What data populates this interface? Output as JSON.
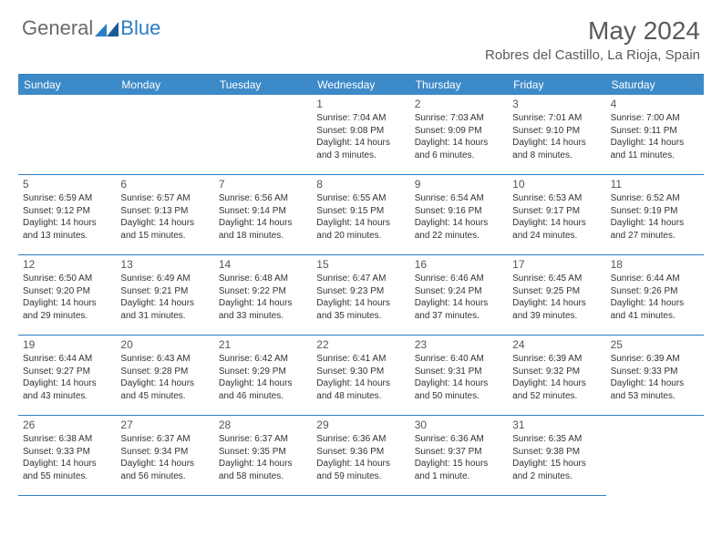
{
  "brand": {
    "general": "General",
    "blue": "Blue"
  },
  "title": "May 2024",
  "location": "Robres del Castillo, La Rioja, Spain",
  "colors": {
    "header_bg": "#3d8ac9",
    "border": "#2b7dc4",
    "text": "#333333",
    "title": "#5a5a5a"
  },
  "weekdays": [
    "Sunday",
    "Monday",
    "Tuesday",
    "Wednesday",
    "Thursday",
    "Friday",
    "Saturday"
  ],
  "first_day_index": 3,
  "days": [
    {
      "n": "1",
      "sunrise": "Sunrise: 7:04 AM",
      "sunset": "Sunset: 9:08 PM",
      "daylight": "Daylight: 14 hours and 3 minutes."
    },
    {
      "n": "2",
      "sunrise": "Sunrise: 7:03 AM",
      "sunset": "Sunset: 9:09 PM",
      "daylight": "Daylight: 14 hours and 6 minutes."
    },
    {
      "n": "3",
      "sunrise": "Sunrise: 7:01 AM",
      "sunset": "Sunset: 9:10 PM",
      "daylight": "Daylight: 14 hours and 8 minutes."
    },
    {
      "n": "4",
      "sunrise": "Sunrise: 7:00 AM",
      "sunset": "Sunset: 9:11 PM",
      "daylight": "Daylight: 14 hours and 11 minutes."
    },
    {
      "n": "5",
      "sunrise": "Sunrise: 6:59 AM",
      "sunset": "Sunset: 9:12 PM",
      "daylight": "Daylight: 14 hours and 13 minutes."
    },
    {
      "n": "6",
      "sunrise": "Sunrise: 6:57 AM",
      "sunset": "Sunset: 9:13 PM",
      "daylight": "Daylight: 14 hours and 15 minutes."
    },
    {
      "n": "7",
      "sunrise": "Sunrise: 6:56 AM",
      "sunset": "Sunset: 9:14 PM",
      "daylight": "Daylight: 14 hours and 18 minutes."
    },
    {
      "n": "8",
      "sunrise": "Sunrise: 6:55 AM",
      "sunset": "Sunset: 9:15 PM",
      "daylight": "Daylight: 14 hours and 20 minutes."
    },
    {
      "n": "9",
      "sunrise": "Sunrise: 6:54 AM",
      "sunset": "Sunset: 9:16 PM",
      "daylight": "Daylight: 14 hours and 22 minutes."
    },
    {
      "n": "10",
      "sunrise": "Sunrise: 6:53 AM",
      "sunset": "Sunset: 9:17 PM",
      "daylight": "Daylight: 14 hours and 24 minutes."
    },
    {
      "n": "11",
      "sunrise": "Sunrise: 6:52 AM",
      "sunset": "Sunset: 9:19 PM",
      "daylight": "Daylight: 14 hours and 27 minutes."
    },
    {
      "n": "12",
      "sunrise": "Sunrise: 6:50 AM",
      "sunset": "Sunset: 9:20 PM",
      "daylight": "Daylight: 14 hours and 29 minutes."
    },
    {
      "n": "13",
      "sunrise": "Sunrise: 6:49 AM",
      "sunset": "Sunset: 9:21 PM",
      "daylight": "Daylight: 14 hours and 31 minutes."
    },
    {
      "n": "14",
      "sunrise": "Sunrise: 6:48 AM",
      "sunset": "Sunset: 9:22 PM",
      "daylight": "Daylight: 14 hours and 33 minutes."
    },
    {
      "n": "15",
      "sunrise": "Sunrise: 6:47 AM",
      "sunset": "Sunset: 9:23 PM",
      "daylight": "Daylight: 14 hours and 35 minutes."
    },
    {
      "n": "16",
      "sunrise": "Sunrise: 6:46 AM",
      "sunset": "Sunset: 9:24 PM",
      "daylight": "Daylight: 14 hours and 37 minutes."
    },
    {
      "n": "17",
      "sunrise": "Sunrise: 6:45 AM",
      "sunset": "Sunset: 9:25 PM",
      "daylight": "Daylight: 14 hours and 39 minutes."
    },
    {
      "n": "18",
      "sunrise": "Sunrise: 6:44 AM",
      "sunset": "Sunset: 9:26 PM",
      "daylight": "Daylight: 14 hours and 41 minutes."
    },
    {
      "n": "19",
      "sunrise": "Sunrise: 6:44 AM",
      "sunset": "Sunset: 9:27 PM",
      "daylight": "Daylight: 14 hours and 43 minutes."
    },
    {
      "n": "20",
      "sunrise": "Sunrise: 6:43 AM",
      "sunset": "Sunset: 9:28 PM",
      "daylight": "Daylight: 14 hours and 45 minutes."
    },
    {
      "n": "21",
      "sunrise": "Sunrise: 6:42 AM",
      "sunset": "Sunset: 9:29 PM",
      "daylight": "Daylight: 14 hours and 46 minutes."
    },
    {
      "n": "22",
      "sunrise": "Sunrise: 6:41 AM",
      "sunset": "Sunset: 9:30 PM",
      "daylight": "Daylight: 14 hours and 48 minutes."
    },
    {
      "n": "23",
      "sunrise": "Sunrise: 6:40 AM",
      "sunset": "Sunset: 9:31 PM",
      "daylight": "Daylight: 14 hours and 50 minutes."
    },
    {
      "n": "24",
      "sunrise": "Sunrise: 6:39 AM",
      "sunset": "Sunset: 9:32 PM",
      "daylight": "Daylight: 14 hours and 52 minutes."
    },
    {
      "n": "25",
      "sunrise": "Sunrise: 6:39 AM",
      "sunset": "Sunset: 9:33 PM",
      "daylight": "Daylight: 14 hours and 53 minutes."
    },
    {
      "n": "26",
      "sunrise": "Sunrise: 6:38 AM",
      "sunset": "Sunset: 9:33 PM",
      "daylight": "Daylight: 14 hours and 55 minutes."
    },
    {
      "n": "27",
      "sunrise": "Sunrise: 6:37 AM",
      "sunset": "Sunset: 9:34 PM",
      "daylight": "Daylight: 14 hours and 56 minutes."
    },
    {
      "n": "28",
      "sunrise": "Sunrise: 6:37 AM",
      "sunset": "Sunset: 9:35 PM",
      "daylight": "Daylight: 14 hours and 58 minutes."
    },
    {
      "n": "29",
      "sunrise": "Sunrise: 6:36 AM",
      "sunset": "Sunset: 9:36 PM",
      "daylight": "Daylight: 14 hours and 59 minutes."
    },
    {
      "n": "30",
      "sunrise": "Sunrise: 6:36 AM",
      "sunset": "Sunset: 9:37 PM",
      "daylight": "Daylight: 15 hours and 1 minute."
    },
    {
      "n": "31",
      "sunrise": "Sunrise: 6:35 AM",
      "sunset": "Sunset: 9:38 PM",
      "daylight": "Daylight: 15 hours and 2 minutes."
    }
  ]
}
